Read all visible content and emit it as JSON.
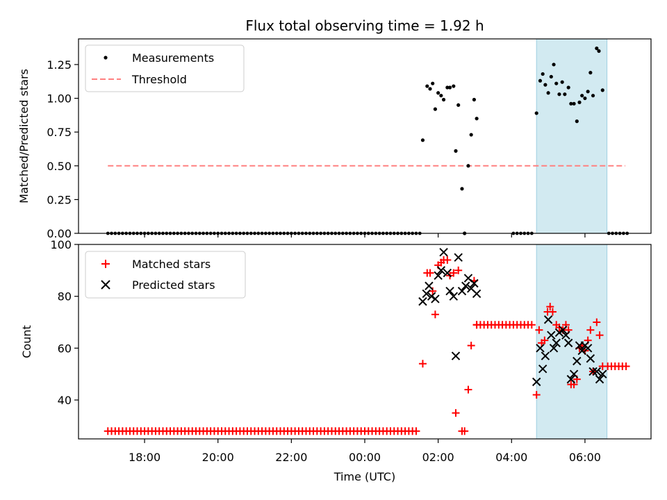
{
  "chart_data": {
    "title": "Flux total observing time = 1.92 h",
    "xlabel": "Time (UTC)",
    "x_ticks": [
      "18:00",
      "20:00",
      "22:00",
      "00:00",
      "02:00",
      "04:00",
      "06:00"
    ],
    "x_tick_hours": [
      18,
      20,
      22,
      24,
      26,
      28,
      30
    ],
    "xlim_hours": [
      16.2,
      31.8
    ],
    "shaded_span_hours": [
      28.68,
      30.6
    ],
    "shade_color": "#add8e6",
    "top": {
      "type": "scatter",
      "ylabel": "Matched/Predicted stars",
      "ylim": [
        0,
        1.44
      ],
      "y_ticks": [
        "0.00",
        "0.25",
        "0.50",
        "0.75",
        "1.00",
        "1.25"
      ],
      "y_tick_values": [
        0,
        0.25,
        0.5,
        0.75,
        1.0,
        1.25
      ],
      "legend_position": "upper-left",
      "legend": [
        "Measurements",
        "Threshold"
      ],
      "threshold": {
        "value": 0.5,
        "x_range_hours": [
          17.0,
          31.1
        ],
        "color": "#ff8080"
      },
      "measurement_color": "#000000",
      "zero_segments_hours": [
        [
          17.0,
          25.6
        ],
        [
          25.6,
          25.75,
          0.0
        ],
        [
          28.05,
          28.6
        ],
        [
          30.65,
          31.15
        ]
      ],
      "measurements": [
        [
          25.58,
          0.69
        ],
        [
          25.7,
          1.09
        ],
        [
          25.78,
          1.07
        ],
        [
          25.85,
          1.11
        ],
        [
          25.92,
          0.92
        ],
        [
          26.0,
          1.04
        ],
        [
          26.08,
          1.02
        ],
        [
          26.15,
          0.99
        ],
        [
          26.25,
          1.08
        ],
        [
          26.32,
          1.08
        ],
        [
          26.42,
          1.09
        ],
        [
          26.48,
          0.61
        ],
        [
          26.55,
          0.95
        ],
        [
          26.65,
          0.33
        ],
        [
          26.72,
          0.0
        ],
        [
          26.82,
          0.5
        ],
        [
          26.9,
          0.73
        ],
        [
          26.98,
          0.99
        ],
        [
          27.05,
          0.85
        ],
        [
          28.68,
          0.89
        ],
        [
          28.78,
          1.13
        ],
        [
          28.85,
          1.18
        ],
        [
          28.92,
          1.1
        ],
        [
          29.0,
          1.04
        ],
        [
          29.08,
          1.16
        ],
        [
          29.15,
          1.25
        ],
        [
          29.22,
          1.11
        ],
        [
          29.3,
          1.03
        ],
        [
          29.38,
          1.12
        ],
        [
          29.45,
          1.03
        ],
        [
          29.55,
          1.08
        ],
        [
          29.62,
          0.96
        ],
        [
          29.7,
          0.96
        ],
        [
          29.78,
          0.83
        ],
        [
          29.85,
          0.97
        ],
        [
          29.92,
          1.02
        ],
        [
          30.0,
          1.0
        ],
        [
          30.08,
          1.05
        ],
        [
          30.15,
          1.19
        ],
        [
          30.22,
          1.02
        ],
        [
          30.32,
          1.37
        ],
        [
          30.38,
          1.35
        ],
        [
          30.48,
          1.06
        ]
      ]
    },
    "bottom": {
      "type": "scatter",
      "ylabel": "Count",
      "ylim": [
        25,
        100
      ],
      "y_ticks": [
        "40",
        "60",
        "80",
        "100"
      ],
      "y_tick_values": [
        40,
        60,
        80,
        100
      ],
      "legend_position": "upper-left",
      "legend": [
        "Matched stars",
        "Predicted stars"
      ],
      "series": [
        {
          "name": "Matched stars",
          "marker": "plus",
          "color": "#ff0000",
          "baseline_runs": [
            [
              17.0,
              25.45,
              28
            ],
            [
              27.05,
              28.55,
              69
            ],
            [
              30.62,
              31.15,
              53
            ]
          ],
          "points": [
            [
              25.58,
              54
            ],
            [
              25.7,
              89
            ],
            [
              25.78,
              89
            ],
            [
              25.85,
              82
            ],
            [
              25.92,
              73
            ],
            [
              26.0,
              92
            ],
            [
              26.08,
              93
            ],
            [
              26.15,
              94
            ],
            [
              26.25,
              94
            ],
            [
              26.32,
              88
            ],
            [
              26.42,
              89
            ],
            [
              26.48,
              35
            ],
            [
              26.55,
              90
            ],
            [
              26.65,
              28
            ],
            [
              26.72,
              28
            ],
            [
              26.82,
              44
            ],
            [
              26.9,
              61
            ],
            [
              26.98,
              86
            ],
            [
              27.05,
              69
            ],
            [
              28.68,
              42
            ],
            [
              28.75,
              67
            ],
            [
              28.82,
              62
            ],
            [
              28.9,
              63
            ],
            [
              28.98,
              74
            ],
            [
              29.05,
              76
            ],
            [
              29.12,
              74
            ],
            [
              29.22,
              69
            ],
            [
              29.3,
              68
            ],
            [
              29.4,
              67
            ],
            [
              29.48,
              69
            ],
            [
              29.55,
              67
            ],
            [
              29.62,
              46
            ],
            [
              29.7,
              46
            ],
            [
              29.78,
              48
            ],
            [
              29.85,
              60
            ],
            [
              29.92,
              61
            ],
            [
              30.0,
              59
            ],
            [
              30.08,
              63
            ],
            [
              30.15,
              67
            ],
            [
              30.22,
              51
            ],
            [
              30.32,
              70
            ],
            [
              30.4,
              65
            ],
            [
              30.48,
              53
            ]
          ]
        },
        {
          "name": "Predicted stars",
          "marker": "x",
          "color": "#000000",
          "points": [
            [
              25.58,
              78
            ],
            [
              25.68,
              81
            ],
            [
              25.75,
              84
            ],
            [
              25.82,
              80
            ],
            [
              25.92,
              79
            ],
            [
              26.0,
              88
            ],
            [
              26.08,
              90
            ],
            [
              26.15,
              97
            ],
            [
              26.25,
              89
            ],
            [
              26.32,
              82
            ],
            [
              26.42,
              80
            ],
            [
              26.48,
              57
            ],
            [
              26.55,
              95
            ],
            [
              26.65,
              82
            ],
            [
              26.75,
              84
            ],
            [
              26.82,
              87
            ],
            [
              26.9,
              83
            ],
            [
              26.98,
              85
            ],
            [
              27.05,
              81
            ],
            [
              28.68,
              47
            ],
            [
              28.78,
              60
            ],
            [
              28.85,
              52
            ],
            [
              28.92,
              57
            ],
            [
              29.0,
              71
            ],
            [
              29.08,
              65
            ],
            [
              29.15,
              60
            ],
            [
              29.22,
              62
            ],
            [
              29.3,
              66
            ],
            [
              29.4,
              67
            ],
            [
              29.48,
              65
            ],
            [
              29.55,
              62
            ],
            [
              29.62,
              48
            ],
            [
              29.7,
              50
            ],
            [
              29.78,
              55
            ],
            [
              29.85,
              61
            ],
            [
              29.92,
              59
            ],
            [
              30.0,
              61
            ],
            [
              30.08,
              60
            ],
            [
              30.15,
              56
            ],
            [
              30.22,
              51
            ],
            [
              30.32,
              51
            ],
            [
              30.4,
              48
            ],
            [
              30.48,
              50
            ]
          ]
        }
      ]
    }
  }
}
